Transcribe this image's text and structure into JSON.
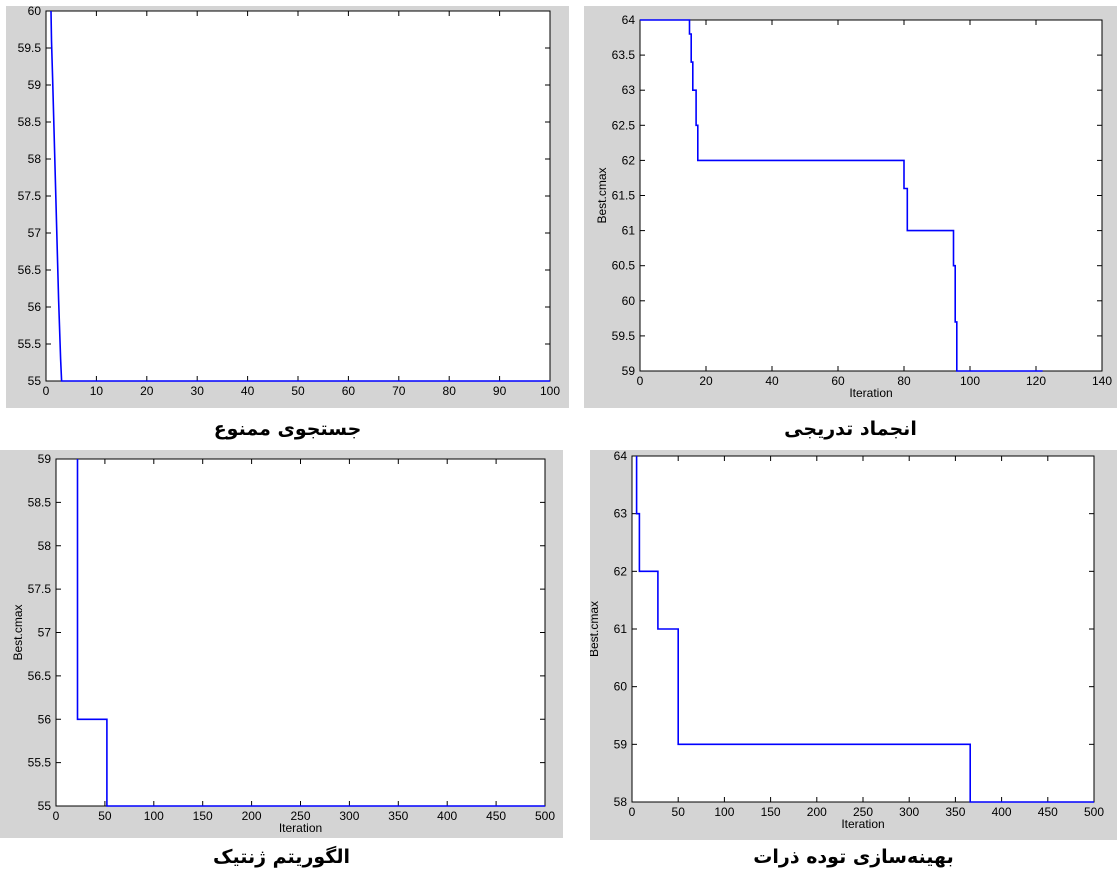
{
  "chart_data": [
    {
      "type": "line",
      "caption": "جستجوی ممنوع",
      "title": "",
      "xlabel": "",
      "ylabel": "",
      "xlim": [
        0,
        100
      ],
      "ylim": [
        55,
        60
      ],
      "xticks": [
        0,
        10,
        20,
        30,
        40,
        50,
        60,
        70,
        80,
        90,
        100
      ],
      "yticks": [
        55,
        55.5,
        56,
        56.5,
        57,
        57.5,
        58,
        58.5,
        59,
        59.5,
        60
      ],
      "series": [
        {
          "name": "",
          "color": "#0000ff",
          "x": [
            1,
            1.1,
            1.3,
            1.5,
            1.7,
            1.9,
            2.1,
            2.3,
            2.5,
            2.7,
            2.9,
            3.1,
            100
          ],
          "y": [
            60,
            59.6,
            59.1,
            58.6,
            58.1,
            57.6,
            57.1,
            56.6,
            56.1,
            55.7,
            55.3,
            55,
            55
          ]
        }
      ]
    },
    {
      "type": "line",
      "caption": "انجماد تدریجی",
      "title": "",
      "xlabel": "Iteration",
      "ylabel": "Best.cmax",
      "xlim": [
        0,
        140
      ],
      "ylim": [
        59,
        64
      ],
      "xticks": [
        0,
        20,
        40,
        60,
        80,
        100,
        120,
        140
      ],
      "yticks": [
        59,
        59.5,
        60,
        60.5,
        61,
        61.5,
        62,
        62.5,
        63,
        63.5,
        64
      ],
      "series": [
        {
          "name": "",
          "color": "#0000ff",
          "x": [
            0,
            15,
            15,
            15.5,
            15.5,
            16,
            16,
            17,
            17,
            17.5,
            17.5,
            80,
            80,
            81,
            81,
            95,
            95,
            95.5,
            95.5,
            96,
            96,
            122
          ],
          "y": [
            64,
            64,
            63.8,
            63.8,
            63.4,
            63.4,
            63,
            63,
            62.5,
            62.5,
            62,
            62,
            61.6,
            61.6,
            61,
            61,
            60.5,
            60.5,
            59.7,
            59.7,
            59,
            59
          ]
        }
      ]
    },
    {
      "type": "line",
      "caption": "الگوریتم ژنتیک",
      "title": "",
      "xlabel": "Iteration",
      "ylabel": "Best.cmax",
      "xlim": [
        0,
        500
      ],
      "ylim": [
        55,
        59
      ],
      "xticks": [
        0,
        50,
        100,
        150,
        200,
        250,
        300,
        350,
        400,
        450,
        500
      ],
      "yticks": [
        55,
        55.5,
        56,
        56.5,
        57,
        57.5,
        58,
        58.5,
        59
      ],
      "series": [
        {
          "name": "",
          "color": "#0000ff",
          "x": [
            22,
            22,
            52,
            52,
            500
          ],
          "y": [
            59,
            56,
            56,
            55,
            55
          ]
        }
      ]
    },
    {
      "type": "line",
      "caption": "بهینه‌سازی توده ذرات",
      "title": "",
      "xlabel": "Iteration",
      "ylabel": "Best.cmax",
      "xlim": [
        0,
        500
      ],
      "ylim": [
        58,
        64
      ],
      "xticks": [
        0,
        50,
        100,
        150,
        200,
        250,
        300,
        350,
        400,
        450,
        500
      ],
      "yticks": [
        58,
        59,
        60,
        61,
        62,
        63,
        64
      ],
      "series": [
        {
          "name": "",
          "color": "#0000ff",
          "x": [
            5,
            5,
            8,
            8,
            28,
            28,
            50,
            50,
            366,
            366,
            500
          ],
          "y": [
            64,
            63,
            63,
            62,
            62,
            61,
            61,
            59,
            59,
            58,
            58
          ]
        }
      ]
    }
  ]
}
